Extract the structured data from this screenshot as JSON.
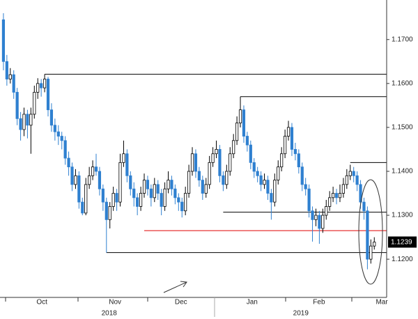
{
  "chart_data": {
    "type": "candlestick",
    "up_color": "#ffffff",
    "down_color": "#2f80d0",
    "open": [
      1.1745,
      1.165,
      1.161,
      1.162,
      1.158,
      1.152,
      1.1495,
      1.153,
      1.1505,
      1.153,
      1.158,
      1.16,
      1.159,
      1.161,
      1.154,
      1.1505,
      1.149,
      1.148,
      1.147,
      1.143,
      1.141,
      1.137,
      1.139,
      1.133,
      1.1305,
      1.137,
      1.139,
      1.141,
      1.14,
      1.136,
      1.133,
      1.129,
      1.132,
      1.135,
      1.133,
      1.142,
      1.144,
      1.139,
      1.136,
      1.134,
      1.132,
      1.135,
      1.138,
      1.136,
      1.134,
      1.137,
      1.135,
      1.132,
      1.136,
      1.138,
      1.136,
      1.134,
      1.133,
      1.131,
      1.135,
      1.14,
      1.144,
      1.14,
      1.138,
      1.135,
      1.137,
      1.142,
      1.144,
      1.145,
      1.139,
      1.137,
      1.14,
      1.144,
      1.147,
      1.151,
      1.154,
      1.148,
      1.146,
      1.142,
      1.14,
      1.139,
      1.137,
      1.138,
      1.135,
      1.133,
      1.138,
      1.141,
      1.144,
      1.148,
      1.15,
      1.145,
      1.144,
      1.141,
      1.137,
      1.136,
      1.131,
      1.129,
      1.13,
      1.127,
      1.13,
      1.132,
      1.134,
      1.135,
      1.134,
      1.135,
      1.137,
      1.139,
      1.14,
      1.139,
      1.137,
      1.133,
      1.131,
      1.12,
      1.123
    ],
    "high": [
      1.176,
      1.1665,
      1.1635,
      1.163,
      1.159,
      1.1535,
      1.1545,
      1.154,
      1.1545,
      1.1595,
      1.1612,
      1.161,
      1.1621,
      1.1615,
      1.1555,
      1.152,
      1.1505,
      1.149,
      1.148,
      1.1445,
      1.142,
      1.1405,
      1.14,
      1.134,
      1.1385,
      1.141,
      1.1425,
      1.144,
      1.141,
      1.137,
      1.134,
      1.133,
      1.1365,
      1.136,
      1.144,
      1.147,
      1.145,
      1.14,
      1.1375,
      1.135,
      1.1365,
      1.1395,
      1.139,
      1.137,
      1.1385,
      1.138,
      1.136,
      1.1375,
      1.14,
      1.139,
      1.137,
      1.135,
      1.134,
      1.1365,
      1.1415,
      1.1455,
      1.145,
      1.141,
      1.139,
      1.1385,
      1.1435,
      1.1455,
      1.147,
      1.146,
      1.14,
      1.1415,
      1.1455,
      1.1485,
      1.1525,
      1.157,
      1.155,
      1.149,
      1.147,
      1.143,
      1.141,
      1.14,
      1.1395,
      1.139,
      1.136,
      1.1395,
      1.1425,
      1.1455,
      1.1495,
      1.1515,
      1.151,
      1.1465,
      1.145,
      1.142,
      1.1385,
      1.137,
      1.132,
      1.1315,
      1.131,
      1.1315,
      1.1335,
      1.1355,
      1.1365,
      1.136,
      1.137,
      1.1385,
      1.1405,
      1.1415,
      1.141,
      1.14,
      1.138,
      1.134,
      1.132,
      1.1245,
      1.125
    ],
    "low": [
      1.163,
      1.1595,
      1.16,
      1.1565,
      1.1505,
      1.147,
      1.148,
      1.1475,
      1.144,
      1.152,
      1.1565,
      1.157,
      1.158,
      1.1525,
      1.149,
      1.147,
      1.146,
      1.145,
      1.1415,
      1.139,
      1.1355,
      1.136,
      1.1315,
      1.13,
      1.13,
      1.136,
      1.138,
      1.139,
      1.1345,
      1.131,
      1.1215,
      1.127,
      1.131,
      1.131,
      1.132,
      1.141,
      1.1375,
      1.1345,
      1.132,
      1.13,
      1.131,
      1.134,
      1.1345,
      1.132,
      1.133,
      1.1335,
      1.13,
      1.131,
      1.135,
      1.1345,
      1.1325,
      1.131,
      1.1295,
      1.13,
      1.134,
      1.139,
      1.1385,
      1.1365,
      1.1335,
      1.134,
      1.136,
      1.141,
      1.143,
      1.1375,
      1.1355,
      1.136,
      1.139,
      1.143,
      1.146,
      1.15,
      1.1465,
      1.1445,
      1.1405,
      1.1385,
      1.1375,
      1.1355,
      1.136,
      1.1335,
      1.129,
      1.132,
      1.137,
      1.14,
      1.143,
      1.147,
      1.1435,
      1.1425,
      1.1395,
      1.1355,
      1.1345,
      1.1295,
      1.124,
      1.1275,
      1.1235,
      1.126,
      1.129,
      1.131,
      1.133,
      1.1325,
      1.133,
      1.134,
      1.136,
      1.138,
      1.1375,
      1.1355,
      1.1315,
      1.129,
      1.1177,
      1.119,
      1.1222
    ],
    "close": [
      1.165,
      1.161,
      1.162,
      1.158,
      1.152,
      1.1495,
      1.153,
      1.1505,
      1.153,
      1.158,
      1.16,
      1.159,
      1.161,
      1.154,
      1.1505,
      1.149,
      1.148,
      1.147,
      1.143,
      1.141,
      1.137,
      1.139,
      1.133,
      1.1305,
      1.137,
      1.139,
      1.141,
      1.14,
      1.136,
      1.133,
      1.129,
      1.132,
      1.135,
      1.133,
      1.142,
      1.144,
      1.139,
      1.136,
      1.134,
      1.132,
      1.135,
      1.138,
      1.136,
      1.134,
      1.137,
      1.135,
      1.132,
      1.136,
      1.138,
      1.136,
      1.134,
      1.133,
      1.131,
      1.135,
      1.14,
      1.144,
      1.14,
      1.138,
      1.135,
      1.137,
      1.142,
      1.144,
      1.145,
      1.139,
      1.137,
      1.14,
      1.144,
      1.147,
      1.151,
      1.154,
      1.148,
      1.146,
      1.142,
      1.14,
      1.139,
      1.137,
      1.138,
      1.135,
      1.133,
      1.138,
      1.141,
      1.144,
      1.148,
      1.15,
      1.145,
      1.144,
      1.141,
      1.137,
      1.136,
      1.131,
      1.129,
      1.13,
      1.127,
      1.13,
      1.132,
      1.134,
      1.135,
      1.134,
      1.135,
      1.137,
      1.139,
      1.14,
      1.139,
      1.137,
      1.133,
      1.131,
      1.12,
      1.123,
      1.1239
    ],
    "xlim": [
      -1,
      111.6
    ],
    "ylim": [
      1.1113,
      1.179
    ],
    "yticks": [
      {
        "value": 1.12,
        "label": "1.1200"
      },
      {
        "value": 1.13,
        "label": "1.1300"
      },
      {
        "value": 1.14,
        "label": "1.1400"
      },
      {
        "value": 1.15,
        "label": "1.1500"
      },
      {
        "value": 1.16,
        "label": "1.1600"
      },
      {
        "value": 1.17,
        "label": "1.1700"
      }
    ],
    "xticks": [
      {
        "value": 11.2,
        "label": "Oct"
      },
      {
        "value": 32.5,
        "label": "Nov"
      },
      {
        "value": 51.7,
        "label": "Dec"
      },
      {
        "value": 72.4,
        "label": "Jan"
      },
      {
        "value": 91.9,
        "label": "Feb"
      },
      {
        "value": 110.2,
        "label": "Mar"
      }
    ],
    "year_labels": [
      {
        "value": 30.8,
        "label": "2018"
      },
      {
        "value": 86.6,
        "label": "2019"
      }
    ],
    "levels": [
      {
        "value": 1.1621,
        "start": 12,
        "color": "#000000"
      },
      {
        "value": 1.157,
        "start": 69,
        "color": "#000000"
      },
      {
        "value": 1.142,
        "start": 101,
        "color": "#000000"
      },
      {
        "value": 1.1307,
        "start": 64,
        "color": "#000000"
      },
      {
        "value": 1.1265,
        "start": 41,
        "color": "#e00000"
      },
      {
        "value": 1.1215,
        "start": 30,
        "color": "#000000"
      }
    ],
    "last_price": 1.1239
  }
}
